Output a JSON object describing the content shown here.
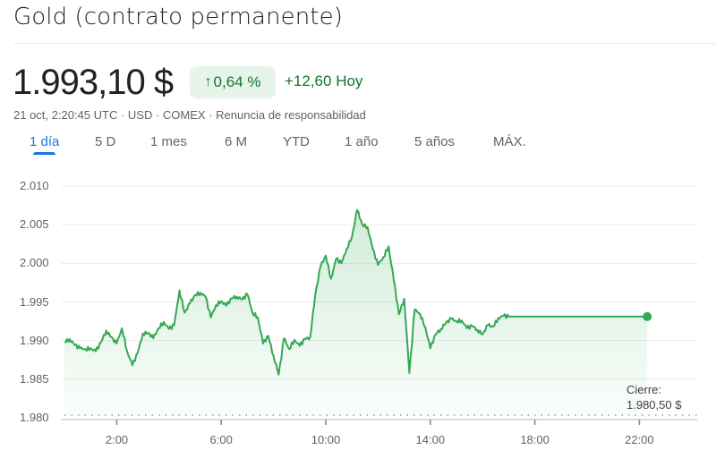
{
  "header": {
    "title": "Gold (contrato permanente)",
    "price": "1.993,10 $",
    "change_percent": "0,64 %",
    "change_percent_icon": "arrow-up-icon",
    "change_abs": "+12,60 Hoy",
    "timestamp": "21 oct, 2:20:45 UTC",
    "currency": "USD",
    "exchange": "COMEX",
    "separator": " · ",
    "disclaimer": "Renuncia de responsabilidad"
  },
  "tabs": [
    {
      "label": "1 día",
      "active": true
    },
    {
      "label": "5 D",
      "active": false
    },
    {
      "label": "1 mes",
      "active": false
    },
    {
      "label": "6 M",
      "active": false
    },
    {
      "label": "YTD",
      "active": false
    },
    {
      "label": "1 año",
      "active": false
    },
    {
      "label": "5 años",
      "active": false
    },
    {
      "label": "MÁX.",
      "active": false
    }
  ],
  "colors": {
    "line": "#34a853",
    "positive_text": "#137333",
    "badge_bg": "#e6f4ea",
    "tab_active": "#1a73e8"
  },
  "chart_data": {
    "type": "area",
    "title": "Gold (contrato permanente)",
    "xlabel": "",
    "ylabel": "",
    "ylim": [
      1980,
      2010
    ],
    "y_ticks": [
      "2.010",
      "2.005",
      "2.000",
      "1.995",
      "1.990",
      "1.985",
      "1.980"
    ],
    "x_ticks": [
      "2:00",
      "6:00",
      "10:00",
      "14:00",
      "18:00",
      "22:00"
    ],
    "grid": true,
    "previous_close": {
      "label": "Cierre:",
      "value": "1.980,50 $",
      "numeric": 1980.5
    },
    "last_value": 1993.1,
    "series": [
      {
        "name": "Gold",
        "x_hours": [
          0.0,
          0.2,
          0.4,
          0.6,
          0.8,
          1.0,
          1.2,
          1.4,
          1.6,
          1.8,
          2.0,
          2.2,
          2.4,
          2.6,
          2.8,
          3.0,
          3.2,
          3.4,
          3.6,
          3.8,
          4.0,
          4.2,
          4.4,
          4.6,
          4.8,
          5.0,
          5.2,
          5.4,
          5.6,
          5.8,
          6.0,
          6.2,
          6.4,
          6.6,
          6.8,
          7.0,
          7.2,
          7.4,
          7.6,
          7.8,
          8.0,
          8.2,
          8.4,
          8.6,
          8.8,
          9.0,
          9.2,
          9.4,
          9.6,
          9.8,
          10.0,
          10.2,
          10.4,
          10.6,
          10.8,
          11.0,
          11.2,
          11.4,
          11.6,
          11.8,
          12.0,
          12.2,
          12.4,
          12.6,
          12.8,
          13.0,
          13.2,
          13.4,
          13.6,
          13.8,
          14.0,
          14.2,
          14.4,
          14.6,
          14.8,
          15.0,
          15.2,
          15.4,
          15.6,
          15.8,
          16.0,
          16.2,
          16.4,
          16.6,
          16.8,
          17.0,
          22.3
        ],
        "values": [
          1989.8,
          1990.2,
          1989.4,
          1989.0,
          1988.9,
          1989.0,
          1988.6,
          1989.8,
          1991.3,
          1990.4,
          1989.6,
          1991.6,
          1988.6,
          1986.8,
          1988.4,
          1990.9,
          1991.0,
          1990.3,
          1991.6,
          1992.4,
          1991.5,
          1992.0,
          1996.5,
          1993.6,
          1994.8,
          1995.9,
          1996.2,
          1995.7,
          1993.0,
          1994.6,
          1995.1,
          1994.5,
          1995.5,
          1995.7,
          1995.3,
          1996.0,
          1993.6,
          1993.0,
          1989.6,
          1990.6,
          1988.0,
          1985.6,
          1990.3,
          1988.9,
          1990.1,
          1989.3,
          1990.2,
          1990.4,
          1996.0,
          1999.6,
          2001.0,
          1998.0,
          2000.6,
          2000.0,
          2001.9,
          2003.4,
          2006.9,
          2005.0,
          2004.7,
          2001.8,
          1999.8,
          2000.8,
          2002.2,
          1997.9,
          1993.4,
          1995.4,
          1985.8,
          1994.0,
          1993.5,
          1991.8,
          1989.0,
          1990.8,
          1991.5,
          1992.3,
          1992.8,
          1992.5,
          1992.6,
          1991.6,
          1991.9,
          1991.4,
          1990.8,
          1992.0,
          1991.8,
          1992.9,
          1993.2,
          1993.1,
          1993.1
        ]
      }
    ]
  },
  "chart_labels": {
    "close_label": "Cierre:",
    "close_value": "1.980,50 $"
  }
}
